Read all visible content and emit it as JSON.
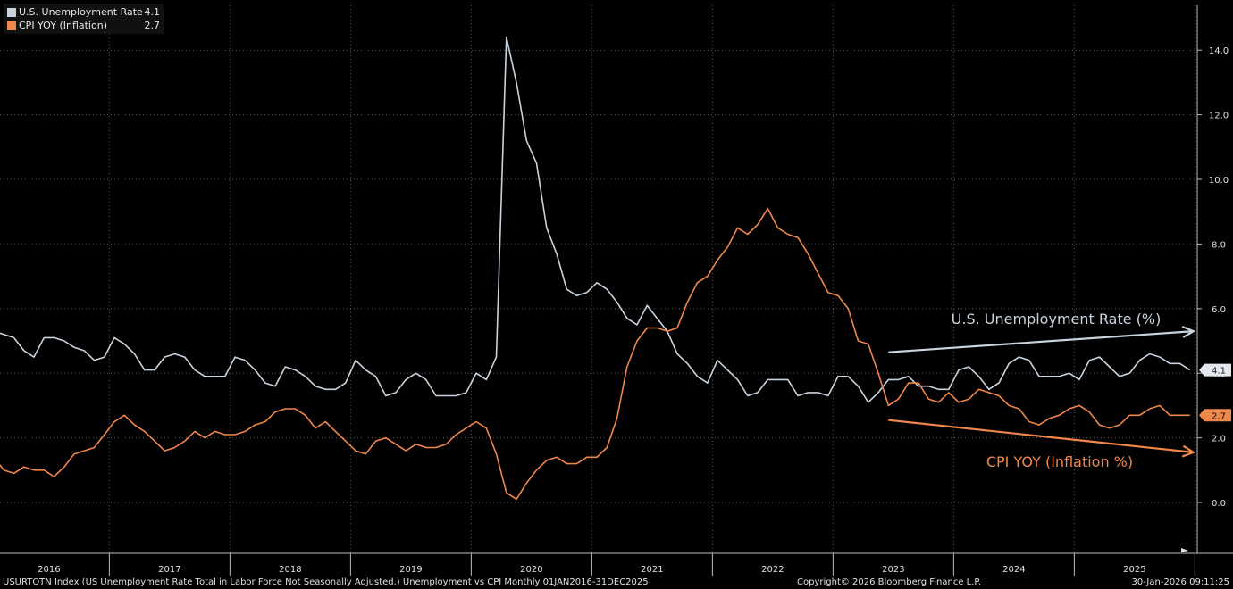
{
  "legend": [
    {
      "name": "U.S. Unemployment Rate",
      "value": "4.1",
      "color": "#c9d3de"
    },
    {
      "name": "CPI YOY (Inflation)",
      "value": "2.7",
      "color": "#f0874a"
    }
  ],
  "footer": {
    "left": "USURTOTN Index (US Unemployment Rate Total in Labor Force Not Seasonally Adjusted.) Unemployment vs CPI Monthly 01JAN2016-31DEC2025",
    "center": "Copyright© 2026 Bloomberg Finance L.P.",
    "right": "30-Jan-2026 09:11:25"
  },
  "annotations": [
    {
      "text": "U.S. Unemployment Rate (%)",
      "color": "#c9d3de",
      "arrow_from": [
        "2023-06",
        4.65
      ],
      "arrow_to": [
        "2025-12",
        5.3
      ]
    },
    {
      "text": "CPI YOY (Inflation %)",
      "color": "#f0874a",
      "arrow_from": [
        "2023-06",
        2.55
      ],
      "arrow_to": [
        "2025-12",
        1.55
      ]
    }
  ],
  "chart_data": {
    "type": "line",
    "x_start": "2016-01",
    "x_end": "2025-12",
    "frequency": "monthly",
    "ylim": [
      -1.6,
      15.0
    ],
    "yticks": [
      0.0,
      2.0,
      4.0,
      6.0,
      8.0,
      10.0,
      12.0,
      14.0
    ],
    "ytick_labels": [
      "0.0",
      "2.0",
      "4.0",
      "6.0",
      "8.0",
      "10.0",
      "12.0",
      "14.0"
    ],
    "xtick_labels": [
      "2016",
      "2017",
      "2018",
      "2019",
      "2020",
      "2021",
      "2022",
      "2023",
      "2024",
      "2025"
    ],
    "grid": true,
    "y_axis_side": "right",
    "series": [
      {
        "name": "U.S. Unemployment Rate",
        "color": "#c9d3de",
        "last_value_label": "4.1",
        "values": [
          5.3,
          5.2,
          5.1,
          4.7,
          4.5,
          5.1,
          5.1,
          5.0,
          4.8,
          4.7,
          4.4,
          4.5,
          5.1,
          4.9,
          4.6,
          4.1,
          4.1,
          4.5,
          4.6,
          4.5,
          4.1,
          3.9,
          3.9,
          3.9,
          4.5,
          4.4,
          4.1,
          3.7,
          3.6,
          4.2,
          4.1,
          3.9,
          3.6,
          3.5,
          3.5,
          3.7,
          4.4,
          4.1,
          3.9,
          3.3,
          3.4,
          3.8,
          4.0,
          3.8,
          3.3,
          3.3,
          3.3,
          3.4,
          4.0,
          3.8,
          4.5,
          14.4,
          13.0,
          11.2,
          10.5,
          8.5,
          7.7,
          6.6,
          6.4,
          6.5,
          6.8,
          6.6,
          6.2,
          5.7,
          5.5,
          6.1,
          5.7,
          5.3,
          4.6,
          4.3,
          3.9,
          3.7,
          4.4,
          4.1,
          3.8,
          3.3,
          3.4,
          3.8,
          3.8,
          3.8,
          3.3,
          3.4,
          3.4,
          3.3,
          3.9,
          3.9,
          3.6,
          3.1,
          3.4,
          3.8,
          3.8,
          3.9,
          3.6,
          3.6,
          3.5,
          3.5,
          4.1,
          4.2,
          3.9,
          3.5,
          3.7,
          4.3,
          4.5,
          4.4,
          3.9,
          3.9,
          3.9,
          4.0,
          3.8,
          4.4,
          4.5,
          4.2,
          3.9,
          4.0,
          4.4,
          4.6,
          4.5,
          4.3,
          4.3,
          4.1
        ]
      },
      {
        "name": "CPI YOY (Inflation)",
        "color": "#f0874a",
        "last_value_label": "2.7",
        "values": [
          1.4,
          1.0,
          0.9,
          1.1,
          1.0,
          1.0,
          0.8,
          1.1,
          1.5,
          1.6,
          1.7,
          2.1,
          2.5,
          2.7,
          2.4,
          2.2,
          1.9,
          1.6,
          1.7,
          1.9,
          2.2,
          2.0,
          2.2,
          2.1,
          2.1,
          2.2,
          2.4,
          2.5,
          2.8,
          2.9,
          2.9,
          2.7,
          2.3,
          2.5,
          2.2,
          1.9,
          1.6,
          1.5,
          1.9,
          2.0,
          1.8,
          1.6,
          1.8,
          1.7,
          1.7,
          1.8,
          2.1,
          2.3,
          2.5,
          2.3,
          1.5,
          0.3,
          0.1,
          0.6,
          1.0,
          1.3,
          1.4,
          1.2,
          1.2,
          1.4,
          1.4,
          1.7,
          2.6,
          4.2,
          5.0,
          5.4,
          5.4,
          5.3,
          5.4,
          6.2,
          6.8,
          7.0,
          7.5,
          7.9,
          8.5,
          8.3,
          8.6,
          9.1,
          8.5,
          8.3,
          8.2,
          7.7,
          7.1,
          6.5,
          6.4,
          6.0,
          5.0,
          4.9,
          4.0,
          3.0,
          3.2,
          3.7,
          3.7,
          3.2,
          3.1,
          3.4,
          3.1,
          3.2,
          3.5,
          3.4,
          3.3,
          3.0,
          2.9,
          2.5,
          2.4,
          2.6,
          2.7,
          2.9,
          3.0,
          2.8,
          2.4,
          2.3,
          2.4,
          2.7,
          2.7,
          2.9,
          3.0,
          2.7,
          2.7,
          2.7
        ]
      }
    ]
  }
}
